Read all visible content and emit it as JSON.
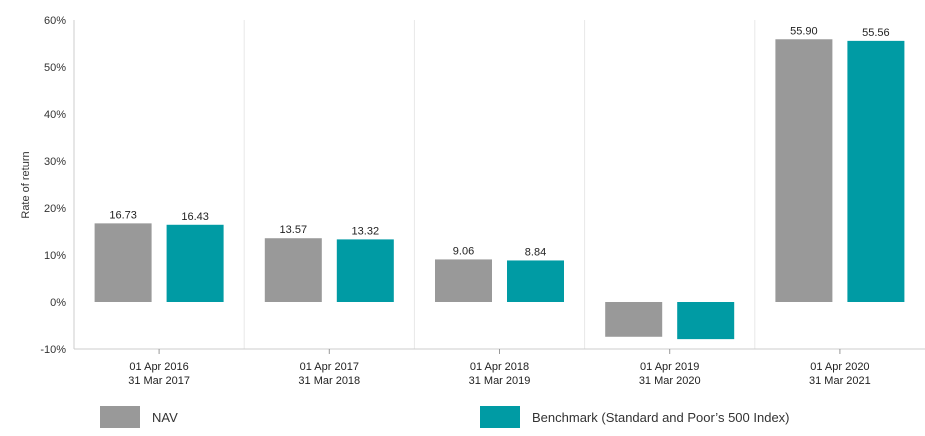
{
  "chart_data": {
    "type": "bar",
    "ylabel": "Rate of return",
    "ylim": [
      -10,
      60
    ],
    "yticks": [
      -10,
      0,
      10,
      20,
      30,
      40,
      50,
      60
    ],
    "ytick_labels": [
      "-10%",
      "0%",
      "10%",
      "20%",
      "30%",
      "40%",
      "50%",
      "60%"
    ],
    "grid": "vertical",
    "legend_position": "bottom",
    "categories": [
      {
        "line1": "01 Apr 2016",
        "line2": "31 Mar 2017"
      },
      {
        "line1": "01 Apr 2017",
        "line2": "31 Mar 2018"
      },
      {
        "line1": "01 Apr 2018",
        "line2": "31 Mar 2019"
      },
      {
        "line1": "01 Apr 2019",
        "line2": "31 Mar 2020"
      },
      {
        "line1": "01 Apr 2020",
        "line2": "31 Mar 2021"
      }
    ],
    "series": [
      {
        "name": "NAV",
        "color": "#999999",
        "values": [
          16.73,
          13.57,
          9.06,
          -7.4,
          55.9
        ],
        "labels": [
          "16.73",
          "13.57",
          "9.06",
          "",
          "55.90"
        ]
      },
      {
        "name": "Benchmark (Standard and Poor's 500 Index)",
        "color": "#009ba4",
        "values": [
          16.43,
          13.32,
          8.84,
          -7.9,
          55.56
        ],
        "labels": [
          "16.43",
          "13.32",
          "8.84",
          "",
          "55.56"
        ]
      }
    ]
  },
  "legend": {
    "nav_label": "NAV",
    "nav_color": "#999999",
    "benchmark_label": "Benchmark (Standard and Poor’s 500 Index)",
    "benchmark_color": "#009ba4"
  }
}
